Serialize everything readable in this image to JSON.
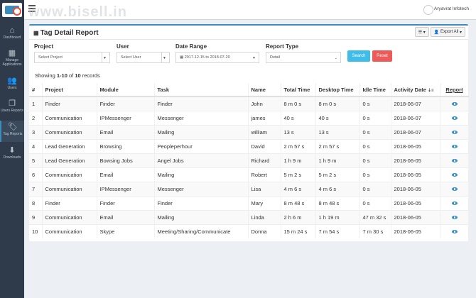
{
  "app": {
    "watermark": "www.bisell.in",
    "user": "Aryavrat Infotech"
  },
  "sidebar": {
    "items": [
      {
        "icon": "home-icon",
        "glyph": "⌂",
        "label": "Dashboard"
      },
      {
        "icon": "grid-icon",
        "glyph": "▦",
        "label": "Manage Applications"
      },
      {
        "icon": "users-icon",
        "glyph": "👥",
        "label": "Users"
      },
      {
        "icon": "copy-icon",
        "glyph": "❐",
        "label": "Users Reports"
      },
      {
        "icon": "tags-icon",
        "glyph": "🏷",
        "label": "Tag Reports"
      },
      {
        "icon": "download-icon",
        "glyph": "⬇",
        "label": "Downloads"
      }
    ]
  },
  "page": {
    "title": "Tag Detail Report",
    "export_label": "Export All",
    "filters": {
      "project_label": "Project",
      "project_placeholder": "Select Project",
      "user_label": "User",
      "user_placeholder": "Select User",
      "date_label": "Date Range",
      "date_value": "2017-12-15 to 2018-07-20",
      "type_label": "Report Type",
      "type_value": "Detail",
      "search_label": "Search",
      "reset_label": "Reset"
    },
    "showing": {
      "prefix": "Showing ",
      "range": "1-10",
      "mid": " of ",
      "total": "10",
      "suffix": " records"
    }
  },
  "table": {
    "headers": [
      "#",
      "Project",
      "Module",
      "Task",
      "Name",
      "Total Time",
      "Desktop Time",
      "Idle Time",
      "Activity Date",
      "Report"
    ],
    "rows": [
      [
        "1",
        "Finder",
        "Finder",
        "Finder",
        "John",
        "8 m 0 s",
        "8 m 0 s",
        "0 s",
        "2018-06-07"
      ],
      [
        "2",
        "Communication",
        "IPMessenger",
        "Messenger",
        "james",
        "40 s",
        "40 s",
        "0 s",
        "2018-06-07"
      ],
      [
        "3",
        "Communication",
        "Email",
        "Mailing",
        "william",
        "13 s",
        "13 s",
        "0 s",
        "2018-06-07"
      ],
      [
        "4",
        "Lead Generation",
        "Browsing",
        "Peopleperhour",
        "David",
        "2 m 57 s",
        "2 m 57 s",
        "0 s",
        "2018-06-05"
      ],
      [
        "5",
        "Lead Generation",
        "Bowsing Jobs",
        "Angel Jobs",
        "Richard",
        "1 h 9 m",
        "1 h 9 m",
        "0 s",
        "2018-06-05"
      ],
      [
        "6",
        "Communication",
        "Email",
        "Mailing",
        "Robert",
        "5 m 2 s",
        "5 m 2 s",
        "0 s",
        "2018-06-05"
      ],
      [
        "7",
        "Communication",
        "IPMessenger",
        "Messenger",
        "Lisa",
        "4 m 6 s",
        "4 m 6 s",
        "0 s",
        "2018-06-05"
      ],
      [
        "8",
        "Finder",
        "Finder",
        "Finder",
        "Mary",
        "8 m 48 s",
        "8 m 48 s",
        "0 s",
        "2018-06-05"
      ],
      [
        "9",
        "Communication",
        "Email",
        "Mailing",
        "Linda",
        "2 h 6 m",
        "1 h 19 m",
        "47 m 32 s",
        "2018-06-05"
      ],
      [
        "10",
        "Communication",
        "Skype",
        "Meeting/Sharing/Communicate",
        "Donna",
        "15 m 24 s",
        "7 m 54 s",
        "7 m 30 s",
        "2018-06-05"
      ]
    ]
  }
}
